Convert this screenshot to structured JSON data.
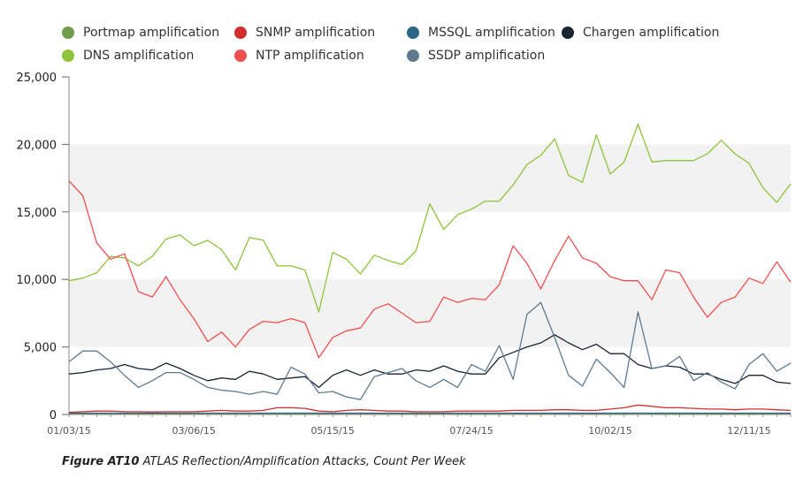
{
  "caption": {
    "figure": "Figure AT10",
    "text": "ATLAS Reflection/Amplification Attacks, Count Per Week"
  },
  "chart_data": {
    "type": "line",
    "title": "",
    "xlabel": "",
    "ylabel": "",
    "ylim": [
      0,
      25000
    ],
    "yticks": [
      "0",
      "5,000",
      "10,000",
      "15,000",
      "20,000",
      "25,000"
    ],
    "xticks": [
      "01/03/15",
      "03/06/15",
      "05/15/15",
      "07/24/15",
      "10/02/15",
      "12/11/15"
    ],
    "xtick_positions": [
      0,
      9,
      19,
      29,
      39,
      49
    ],
    "grid": "alternating horizontal bands",
    "legend_position": "top",
    "n_points": 53,
    "series": [
      {
        "name": "Portmap amplification",
        "color": "#6f9a47",
        "values": [
          50,
          60,
          60,
          70,
          60,
          60,
          50,
          60,
          60,
          60,
          70,
          60,
          60,
          70,
          60,
          60,
          70,
          80,
          70,
          60,
          70,
          80,
          70,
          60,
          60,
          70,
          60,
          60,
          70,
          60,
          70,
          70,
          80,
          70,
          60,
          70,
          80,
          70,
          60,
          70,
          80,
          90,
          80,
          70,
          70,
          80,
          70,
          60,
          70,
          80,
          70,
          60,
          60
        ]
      },
      {
        "name": "SNMP amplification",
        "color": "#d22e2e",
        "values": [
          150,
          200,
          250,
          250,
          200,
          200,
          180,
          200,
          200,
          200,
          250,
          300,
          250,
          250,
          300,
          500,
          500,
          450,
          250,
          200,
          300,
          350,
          300,
          250,
          250,
          200,
          200,
          200,
          250,
          250,
          250,
          250,
          300,
          300,
          300,
          350,
          350,
          300,
          300,
          400,
          500,
          700,
          600,
          500,
          500,
          450,
          400,
          400,
          350,
          400,
          400,
          350,
          300
        ]
      },
      {
        "name": "MSSQL amplification",
        "color": "#2b6584",
        "values": [
          100,
          100,
          100,
          100,
          100,
          100,
          100,
          100,
          100,
          100,
          100,
          100,
          100,
          100,
          100,
          100,
          100,
          100,
          100,
          100,
          100,
          100,
          100,
          100,
          100,
          100,
          100,
          100,
          100,
          100,
          100,
          100,
          100,
          100,
          100,
          100,
          100,
          100,
          100,
          100,
          100,
          100,
          100,
          100,
          100,
          100,
          100,
          100,
          100,
          100,
          100,
          100,
          100
        ]
      },
      {
        "name": "Chargen amplification",
        "color": "#1a2433",
        "values": [
          3000,
          3100,
          3300,
          3400,
          3700,
          3400,
          3300,
          3800,
          3400,
          2900,
          2500,
          2700,
          2600,
          3200,
          3000,
          2600,
          2700,
          2800,
          2000,
          2900,
          3300,
          2900,
          3300,
          3000,
          3000,
          3300,
          3200,
          3600,
          3200,
          3000,
          3000,
          4200,
          4600,
          5000,
          5300,
          5900,
          5300,
          4800,
          5200,
          4500,
          4500,
          3700,
          3400,
          3600,
          3500,
          3000,
          3000,
          2600,
          2300,
          2900,
          2900,
          2400,
          2300
        ]
      },
      {
        "name": "DNS amplification",
        "color": "#8fc43a",
        "values": [
          9900,
          10100,
          10500,
          11700,
          11600,
          11000,
          11700,
          13000,
          13300,
          12500,
          12900,
          12200,
          10700,
          13100,
          12900,
          11000,
          11000,
          10700,
          7600,
          12000,
          11500,
          10400,
          11800,
          11400,
          11100,
          12100,
          15600,
          13700,
          14800,
          15200,
          15800,
          15800,
          17000,
          18500,
          19200,
          20400,
          17700,
          17200,
          20700,
          17800,
          18700,
          21500,
          18700,
          18800,
          18800,
          18800,
          19300,
          20300,
          19300,
          18600,
          16800,
          15700,
          17100
        ]
      },
      {
        "name": "NTP amplification",
        "color": "#f04f4f",
        "values": [
          17300,
          16200,
          12700,
          11500,
          11900,
          9100,
          8700,
          10200,
          8500,
          7100,
          5400,
          6100,
          5000,
          6300,
          6900,
          6800,
          7100,
          6800,
          4200,
          5700,
          6200,
          6400,
          7800,
          8200,
          7500,
          6800,
          6900,
          8700,
          8300,
          8600,
          8500,
          9600,
          12500,
          11200,
          9300,
          11400,
          13200,
          11600,
          11200,
          10200,
          9900,
          9900,
          8500,
          10700,
          10500,
          8700,
          7200,
          8300,
          8700,
          10100,
          9700,
          11300,
          9800
        ]
      },
      {
        "name": "SSDP amplification",
        "color": "#5f7a8f",
        "values": [
          3900,
          4700,
          4700,
          3900,
          2900,
          2000,
          2500,
          3100,
          3100,
          2600,
          2000,
          1800,
          1700,
          1500,
          1700,
          1500,
          3500,
          3000,
          1600,
          1700,
          1300,
          1100,
          2800,
          3100,
          3400,
          2500,
          2000,
          2600,
          2000,
          3700,
          3200,
          5100,
          2600,
          7400,
          8300,
          5700,
          2900,
          2100,
          4100,
          3100,
          2000,
          7600,
          3400,
          3600,
          4300,
          2500,
          3100,
          2400,
          1900,
          3700,
          4500,
          3200,
          3800
        ]
      }
    ]
  }
}
